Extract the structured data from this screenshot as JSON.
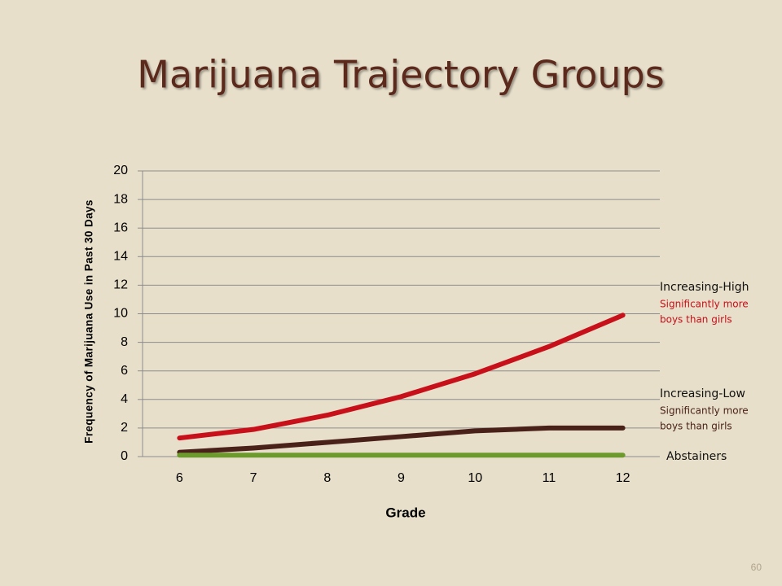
{
  "chart_data": {
    "type": "line",
    "title": "Marijuana Trajectory Groups",
    "x_label": "Grade",
    "y_label": "Frequency of Marijuana Use in Past 30 Days",
    "x": [
      6,
      7,
      8,
      9,
      10,
      11,
      12
    ],
    "xlim": [
      5.5,
      12.5
    ],
    "xticks": [
      6,
      7,
      8,
      9,
      10,
      11,
      12
    ],
    "ylim": [
      0,
      20
    ],
    "yticks": [
      0,
      2,
      4,
      6,
      8,
      10,
      12,
      14,
      16,
      18,
      20
    ],
    "grid": true,
    "series": [
      {
        "name": "Increasing-High",
        "color": "#c8101a",
        "values": [
          1.3,
          1.9,
          2.9,
          4.2,
          5.8,
          7.7,
          9.9
        ],
        "note": [
          "Significantly more",
          "boys than girls"
        ]
      },
      {
        "name": "Increasing-Low",
        "color": "#4a2118",
        "values": [
          0.3,
          0.6,
          1.0,
          1.4,
          1.8,
          2.0,
          2.0
        ],
        "note": [
          "Significantly more",
          "boys than girls"
        ]
      },
      {
        "name": "Abstainers",
        "color": "#6c9a2c",
        "values": [
          0.1,
          0.1,
          0.1,
          0.1,
          0.1,
          0.1,
          0.1
        ]
      }
    ],
    "page_number": "60"
  }
}
